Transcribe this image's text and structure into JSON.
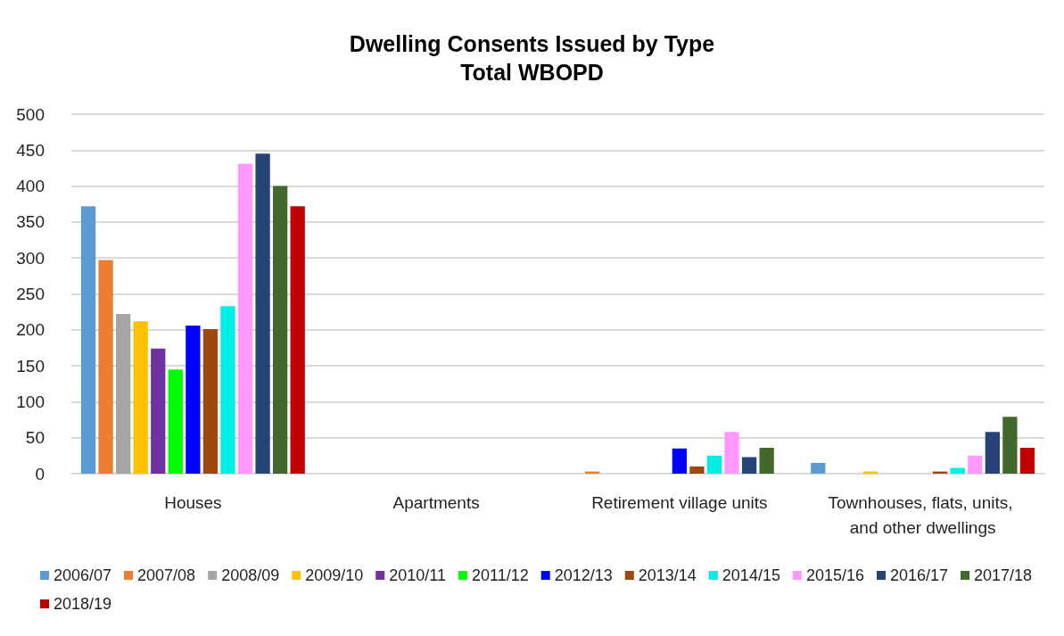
{
  "chart_data": {
    "type": "bar",
    "title": "Dwelling Consents Issued by Type\nTotal WBOPD",
    "categories": [
      "Houses",
      "Apartments",
      "Retirement village units",
      "Townhouses, flats, units, and other dwellings"
    ],
    "series": [
      {
        "name": "2006/07",
        "color": "#5b9bd5",
        "values": [
          372,
          0,
          0,
          15
        ]
      },
      {
        "name": "2007/08",
        "color": "#ed7d31",
        "values": [
          297,
          0,
          3,
          0
        ]
      },
      {
        "name": "2008/09",
        "color": "#a5a5a5",
        "values": [
          222,
          0,
          0,
          0
        ]
      },
      {
        "name": "2009/10",
        "color": "#ffc000",
        "values": [
          212,
          0,
          0,
          3
        ]
      },
      {
        "name": "2010/11",
        "color": "#7030a0",
        "values": [
          174,
          0,
          0,
          0
        ]
      },
      {
        "name": "2011/12",
        "color": "#00ff00",
        "values": [
          145,
          0,
          0,
          0
        ]
      },
      {
        "name": "2012/13",
        "color": "#0000ff",
        "values": [
          206,
          0,
          35,
          0
        ]
      },
      {
        "name": "2013/14",
        "color": "#9e480e",
        "values": [
          201,
          0,
          10,
          3
        ]
      },
      {
        "name": "2014/15",
        "color": "#00f0e8",
        "values": [
          233,
          0,
          25,
          8
        ]
      },
      {
        "name": "2015/16",
        "color": "#ff99ff",
        "values": [
          431,
          0,
          58,
          25
        ]
      },
      {
        "name": "2016/17",
        "color": "#264478",
        "values": [
          445,
          0,
          23,
          58
        ]
      },
      {
        "name": "2017/18",
        "color": "#43682b",
        "values": [
          400,
          0,
          36,
          79
        ]
      },
      {
        "name": "2018/19",
        "color": "#c00000",
        "values": [
          372,
          0,
          0,
          36
        ]
      }
    ],
    "ylim": [
      0,
      500
    ],
    "yticks": [
      0,
      50,
      100,
      150,
      200,
      250,
      300,
      350,
      400,
      450,
      500
    ],
    "grid": "y",
    "legend": "bottom"
  }
}
